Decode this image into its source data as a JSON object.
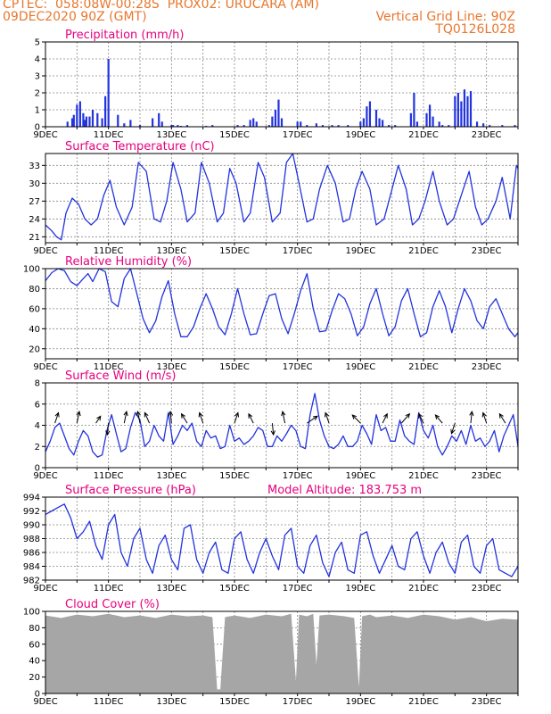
{
  "header": {
    "line1": "CPTEC:  058:08W-00:28S  PROX02: URUCARA (AM)",
    "line2_left": "09DEC2020 90Z (GMT)",
    "line2_right": "Vertical Grid Line: 90Z",
    "line3_right": "TQ0126L028"
  },
  "colors": {
    "header": "#e8772e",
    "title": "#e6007e",
    "series": "#2233dd",
    "cloud": "#a6a6a6"
  },
  "x_ticks": [
    "9DEC",
    "11DEC",
    "13DEC",
    "15DEC",
    "17DEC",
    "19DEC",
    "21DEC",
    "23DEC"
  ],
  "chart_data": [
    {
      "type": "bar",
      "title": "Precipitation (mm/h)",
      "ylim": [
        0,
        5
      ],
      "yticks": [
        0,
        1,
        2,
        3,
        4,
        5
      ],
      "grid": true,
      "x": [
        9.7,
        9.85,
        9.9,
        10.0,
        10.1,
        10.2,
        10.25,
        10.3,
        10.4,
        10.5,
        10.65,
        10.8,
        10.9,
        11.0,
        11.3,
        11.5,
        11.7,
        12.0,
        12.4,
        12.6,
        12.7,
        13.0,
        13.05,
        13.2,
        13.3,
        13.5,
        14.1,
        14.3,
        15.1,
        15.3,
        15.5,
        15.6,
        15.7,
        16.1,
        16.2,
        16.3,
        16.4,
        16.5,
        17.0,
        17.1,
        17.3,
        17.6,
        17.8,
        18.1,
        18.3,
        18.6,
        19.0,
        19.1,
        19.2,
        19.3,
        19.5,
        19.6,
        19.7,
        19.9,
        20.1,
        20.6,
        20.7,
        20.8,
        21.1,
        21.2,
        21.3,
        21.5,
        21.6,
        21.8,
        22.0,
        22.1,
        22.2,
        22.3,
        22.4,
        22.5,
        22.7,
        22.9,
        23.1,
        23.5,
        23.9
      ],
      "values": [
        0.3,
        0.5,
        0.7,
        1.3,
        1.5,
        0.8,
        0.4,
        0.6,
        0.6,
        1.0,
        0.8,
        0.5,
        1.8,
        4.0,
        0.7,
        0.2,
        0.4,
        0.1,
        0.5,
        0.8,
        0.3,
        0.1,
        0.1,
        0.1,
        0.05,
        0.1,
        0.05,
        0.1,
        0.1,
        0.1,
        0.4,
        0.5,
        0.3,
        0.1,
        0.6,
        1.0,
        1.6,
        0.5,
        0.3,
        0.3,
        0.1,
        0.2,
        0.1,
        0.1,
        0.1,
        0.1,
        0.3,
        0.5,
        1.2,
        1.5,
        1.0,
        0.5,
        0.4,
        0.1,
        0.1,
        0.8,
        2.0,
        0.3,
        0.8,
        1.3,
        0.6,
        0.3,
        0.1,
        0.1,
        1.8,
        2.0,
        1.5,
        2.2,
        1.8,
        2.1,
        0.3,
        0.2,
        0.1,
        0.1,
        0.1
      ]
    },
    {
      "type": "line",
      "title": "Surface Temperature (nC)",
      "ylim": [
        20,
        35
      ],
      "yticks": [
        21,
        24,
        27,
        30,
        33
      ],
      "grid": true,
      "x": [
        9.0,
        9.2,
        9.35,
        9.5,
        9.65,
        9.85,
        10.05,
        10.25,
        10.45,
        10.65,
        10.85,
        11.05,
        11.25,
        11.5,
        11.75,
        11.95,
        12.2,
        12.45,
        12.65,
        12.85,
        13.05,
        13.3,
        13.5,
        13.75,
        13.95,
        14.2,
        14.45,
        14.65,
        14.85,
        15.05,
        15.3,
        15.5,
        15.75,
        15.95,
        16.2,
        16.45,
        16.65,
        16.85,
        17.05,
        17.3,
        17.5,
        17.7,
        17.95,
        18.2,
        18.45,
        18.65,
        18.85,
        19.05,
        19.3,
        19.5,
        19.75,
        19.95,
        20.2,
        20.45,
        20.65,
        20.85,
        21.05,
        21.3,
        21.5,
        21.75,
        21.95,
        22.2,
        22.45,
        22.65,
        22.85,
        23.05,
        23.3,
        23.5,
        23.75,
        23.95,
        24.0
      ],
      "values": [
        23,
        22,
        21,
        20.5,
        25,
        27.5,
        26.5,
        24,
        23,
        24,
        28,
        30.5,
        26,
        23,
        26,
        33.5,
        32,
        24,
        23.5,
        27,
        33.5,
        29,
        23.5,
        25,
        33.5,
        30,
        23.5,
        25,
        32.5,
        30,
        23.5,
        25,
        33.5,
        31,
        23.5,
        25,
        33.5,
        35,
        30,
        23.5,
        24,
        29,
        33,
        30,
        23.5,
        24,
        29,
        32,
        29,
        23,
        24,
        28,
        33,
        29,
        23,
        24,
        27,
        32,
        27,
        23,
        24,
        28,
        32,
        26,
        23,
        24,
        27,
        31,
        24,
        33,
        32.5
      ]
    },
    {
      "type": "line",
      "title": "Relative Humidity (%)",
      "ylim": [
        10,
        100
      ],
      "yticks": [
        20,
        40,
        60,
        80,
        100
      ],
      "grid": true,
      "x": [
        9.0,
        9.2,
        9.4,
        9.6,
        9.8,
        10.0,
        10.2,
        10.35,
        10.5,
        10.7,
        10.9,
        11.1,
        11.3,
        11.5,
        11.7,
        11.9,
        12.1,
        12.3,
        12.5,
        12.7,
        12.9,
        13.1,
        13.3,
        13.5,
        13.7,
        13.9,
        14.1,
        14.3,
        14.5,
        14.7,
        14.9,
        15.1,
        15.3,
        15.5,
        15.7,
        15.9,
        16.1,
        16.3,
        16.5,
        16.7,
        16.9,
        17.1,
        17.3,
        17.5,
        17.7,
        17.9,
        18.1,
        18.3,
        18.5,
        18.7,
        18.9,
        19.1,
        19.3,
        19.5,
        19.7,
        19.9,
        20.1,
        20.3,
        20.5,
        20.7,
        20.9,
        21.1,
        21.3,
        21.5,
        21.7,
        21.9,
        22.1,
        22.3,
        22.5,
        22.7,
        22.9,
        23.1,
        23.3,
        23.5,
        23.7,
        23.9,
        24.0
      ],
      "values": [
        88,
        96,
        100,
        98,
        87,
        83,
        90,
        95,
        87,
        100,
        97,
        67,
        62,
        90,
        100,
        75,
        50,
        36,
        48,
        72,
        88,
        55,
        32,
        32,
        42,
        60,
        75,
        60,
        42,
        34,
        55,
        80,
        55,
        34,
        35,
        55,
        73,
        75,
        50,
        35,
        55,
        78,
        95,
        60,
        37,
        38,
        58,
        75,
        70,
        55,
        33,
        42,
        65,
        80,
        55,
        33,
        42,
        68,
        80,
        55,
        32,
        36,
        62,
        78,
        62,
        36,
        60,
        80,
        68,
        48,
        40,
        62,
        70,
        55,
        40,
        32,
        36
      ]
    },
    {
      "type": "line",
      "title": "Surface Wind (m/s)",
      "ylim": [
        0,
        8
      ],
      "yticks": [
        0,
        2,
        4,
        6,
        8
      ],
      "grid": true,
      "x": [
        9.0,
        9.15,
        9.3,
        9.45,
        9.6,
        9.75,
        9.9,
        10.05,
        10.2,
        10.35,
        10.5,
        10.65,
        10.8,
        10.95,
        11.1,
        11.25,
        11.4,
        11.55,
        11.7,
        11.85,
        12.0,
        12.15,
        12.3,
        12.45,
        12.6,
        12.75,
        12.9,
        13.05,
        13.2,
        13.35,
        13.5,
        13.65,
        13.8,
        13.95,
        14.1,
        14.25,
        14.4,
        14.55,
        14.7,
        14.85,
        15.0,
        15.15,
        15.3,
        15.45,
        15.6,
        15.75,
        15.9,
        16.05,
        16.2,
        16.35,
        16.5,
        16.65,
        16.8,
        16.95,
        17.1,
        17.25,
        17.4,
        17.55,
        17.7,
        17.85,
        18.0,
        18.15,
        18.3,
        18.45,
        18.6,
        18.75,
        18.9,
        19.05,
        19.2,
        19.35,
        19.5,
        19.65,
        19.8,
        19.95,
        20.1,
        20.25,
        20.4,
        20.55,
        20.7,
        20.85,
        21.0,
        21.15,
        21.3,
        21.45,
        21.6,
        21.75,
        21.9,
        22.05,
        22.2,
        22.35,
        22.5,
        22.65,
        22.8,
        22.95,
        23.1,
        23.25,
        23.4,
        23.55,
        23.7,
        23.85,
        24.0
      ],
      "values": [
        1.5,
        2.5,
        3.8,
        4.2,
        3.0,
        1.8,
        1.2,
        2.5,
        3.5,
        3.0,
        1.5,
        1.0,
        1.2,
        3.5,
        5.0,
        3.2,
        1.5,
        1.8,
        3.8,
        5.2,
        4.5,
        2.0,
        2.5,
        4.0,
        3.0,
        2.5,
        5.2,
        2.2,
        3.0,
        4.0,
        3.5,
        4.2,
        2.5,
        2.0,
        3.5,
        2.8,
        3.0,
        1.8,
        2.0,
        4.0,
        2.5,
        2.8,
        2.2,
        2.5,
        3.0,
        3.8,
        3.5,
        2.0,
        2.0,
        3.0,
        2.5,
        3.2,
        4.0,
        3.5,
        2.0,
        1.8,
        5.0,
        7.0,
        4.5,
        3.0,
        2.0,
        1.8,
        2.2,
        3.0,
        2.0,
        2.0,
        2.5,
        4.0,
        3.2,
        2.2,
        5.0,
        3.5,
        3.8,
        2.5,
        2.5,
        4.5,
        3.0,
        2.5,
        2.2,
        5.2,
        3.5,
        2.8,
        4.0,
        2.0,
        1.2,
        2.0,
        3.0,
        2.5,
        3.5,
        2.2,
        4.0,
        2.5,
        2.8,
        2.0,
        2.5,
        3.5,
        1.5,
        3.0,
        4.0,
        5.0,
        2.0
      ],
      "arrows": [
        {
          "x": 9.3,
          "dx": 0.3,
          "dy": 0.9
        },
        {
          "x": 10.0,
          "dx": 0.2,
          "dy": 1.0
        },
        {
          "x": 10.6,
          "dx": 0.4,
          "dy": 0.6
        },
        {
          "x": 11.0,
          "dx": -0.1,
          "dy": -1.0
        },
        {
          "x": 11.5,
          "dx": 0.2,
          "dy": 1.0
        },
        {
          "x": 12.0,
          "dx": -0.2,
          "dy": 1.0
        },
        {
          "x": 12.3,
          "dx": -0.4,
          "dy": 0.9
        },
        {
          "x": 13.0,
          "dx": -0.1,
          "dy": 1.0
        },
        {
          "x": 13.5,
          "dx": -0.5,
          "dy": 0.8
        },
        {
          "x": 14.0,
          "dx": -0.3,
          "dy": 0.9
        },
        {
          "x": 15.0,
          "dx": 0.3,
          "dy": 0.9
        },
        {
          "x": 15.6,
          "dx": -0.4,
          "dy": 0.8
        },
        {
          "x": 16.2,
          "dx": 0.1,
          "dy": -1.0
        },
        {
          "x": 16.6,
          "dx": -0.2,
          "dy": 1.0
        },
        {
          "x": 17.3,
          "dx": 0.9,
          "dy": 0.6
        },
        {
          "x": 18.0,
          "dx": -0.3,
          "dy": 0.9
        },
        {
          "x": 19.0,
          "dx": -0.7,
          "dy": 0.7
        },
        {
          "x": 19.7,
          "dx": 0.4,
          "dy": 0.8
        },
        {
          "x": 20.3,
          "dx": 0.7,
          "dy": 0.8
        },
        {
          "x": 21.0,
          "dx": -0.4,
          "dy": 0.8
        },
        {
          "x": 21.6,
          "dx": -0.6,
          "dy": 0.7
        },
        {
          "x": 22.0,
          "dx": -0.3,
          "dy": -0.9
        },
        {
          "x": 22.5,
          "dx": 0.1,
          "dy": 1.0
        },
        {
          "x": 23.0,
          "dx": -0.3,
          "dy": 0.9
        },
        {
          "x": 23.6,
          "dx": -0.5,
          "dy": 0.8
        }
      ]
    },
    {
      "type": "line",
      "title": "Surface Pressure (hPa)",
      "annotation": "Model Altitude: 183.753 m",
      "ylim": [
        982,
        994
      ],
      "yticks": [
        982,
        984,
        986,
        988,
        990,
        992,
        994
      ],
      "grid": true,
      "x": [
        9.0,
        9.2,
        9.4,
        9.6,
        9.8,
        10.0,
        10.2,
        10.4,
        10.6,
        10.8,
        11.0,
        11.2,
        11.4,
        11.6,
        11.8,
        12.0,
        12.2,
        12.4,
        12.6,
        12.8,
        13.0,
        13.2,
        13.4,
        13.6,
        13.8,
        14.0,
        14.2,
        14.4,
        14.6,
        14.8,
        15.0,
        15.2,
        15.4,
        15.6,
        15.8,
        16.0,
        16.2,
        16.4,
        16.6,
        16.8,
        17.0,
        17.2,
        17.4,
        17.6,
        17.8,
        18.0,
        18.2,
        18.4,
        18.6,
        18.8,
        19.0,
        19.2,
        19.4,
        19.6,
        19.8,
        20.0,
        20.2,
        20.4,
        20.6,
        20.8,
        21.0,
        21.2,
        21.4,
        21.6,
        21.8,
        22.0,
        22.2,
        22.4,
        22.6,
        22.8,
        23.0,
        23.2,
        23.4,
        23.6,
        23.8,
        24.0
      ],
      "values": [
        991.5,
        992,
        992.5,
        993,
        991,
        988,
        989,
        990.5,
        987,
        985,
        990,
        991.5,
        986,
        984,
        988,
        989.5,
        985,
        983,
        987,
        988.5,
        985,
        983.5,
        989.5,
        990,
        985,
        983,
        986,
        987.5,
        983.5,
        983,
        988,
        989,
        985,
        983,
        986,
        988,
        985.5,
        983.5,
        988.5,
        989.5,
        984,
        983,
        987,
        988.5,
        984.5,
        982.5,
        986,
        987.5,
        983.5,
        983,
        988.5,
        989,
        985.5,
        983,
        985,
        987,
        984,
        983.5,
        988,
        989,
        985.5,
        983,
        986,
        987.5,
        984.5,
        983,
        987.5,
        988.5,
        984,
        983,
        987,
        988,
        983.5,
        983,
        982.5,
        984
      ]
    },
    {
      "type": "area",
      "title": "Cloud Cover (%)",
      "ylim": [
        0,
        100
      ],
      "yticks": [
        0,
        20,
        40,
        60,
        80,
        100
      ],
      "grid": true,
      "x": [
        9.0,
        9.5,
        10.0,
        10.5,
        11.0,
        11.5,
        12.0,
        12.5,
        13.0,
        13.5,
        14.0,
        14.3,
        14.45,
        14.55,
        14.7,
        15.0,
        15.5,
        16.0,
        16.5,
        16.8,
        16.95,
        17.05,
        17.3,
        17.5,
        17.6,
        17.7,
        18.0,
        18.5,
        18.8,
        18.95,
        19.05,
        19.3,
        19.5,
        20.0,
        20.5,
        21.0,
        21.5,
        22.0,
        22.5,
        23.0,
        23.5,
        24.0
      ],
      "values": [
        95,
        92,
        96,
        94,
        97,
        93,
        95,
        92,
        96,
        94,
        95,
        93,
        5,
        5,
        93,
        95,
        92,
        96,
        94,
        97,
        15,
        96,
        94,
        97,
        35,
        95,
        96,
        94,
        92,
        8,
        94,
        96,
        93,
        95,
        92,
        96,
        94,
        90,
        93,
        88,
        91,
        90
      ]
    }
  ]
}
